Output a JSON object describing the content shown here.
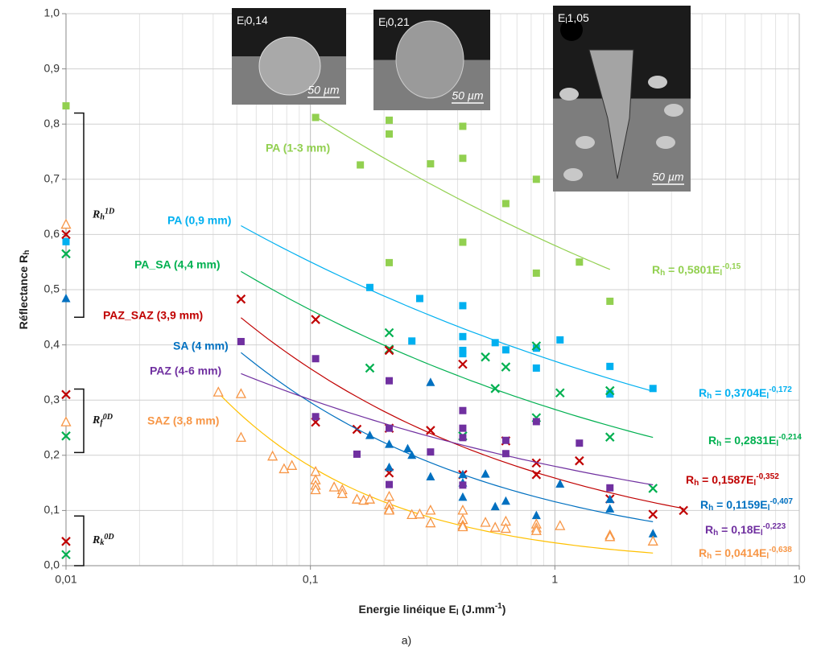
{
  "chart_data": {
    "type": "scatter",
    "log_x": true,
    "grid": true,
    "y_label": {
      "text": "Réflectance R",
      "sub": "h"
    },
    "x_label": {
      "text": "Energie linéique E",
      "sub": "l",
      "unit": " (J.mm",
      "sup": "-1",
      "close": ")"
    },
    "caption": "a)",
    "xlim": [
      0.01,
      10
    ],
    "xticks": [
      {
        "value": 0.01,
        "label": "0,01"
      },
      {
        "value": 0.1,
        "label": "0,1"
      },
      1,
      10
    ],
    "ylim": [
      0,
      1
    ],
    "yticks": [
      {
        "value": 0,
        "label": "0,0"
      },
      {
        "value": 0.1,
        "label": "0,1"
      },
      {
        "value": 0.2,
        "label": "0,2"
      },
      {
        "value": 0.3,
        "label": "0,3"
      },
      {
        "value": 0.4,
        "label": "0,4"
      },
      {
        "value": 0.5,
        "label": "0,5"
      },
      {
        "value": 0.6,
        "label": "0,6"
      },
      {
        "value": 0.7,
        "label": "0,7"
      },
      {
        "value": 0.8,
        "label": "0,8"
      },
      {
        "value": 0.9,
        "label": "0,9"
      },
      {
        "value": 1,
        "label": "1,0"
      }
    ],
    "series": [
      {
        "name": "PA (1-3 mm)",
        "color": "#92d050",
        "marker": "square",
        "x": [
          0.01,
          0.105,
          0.16,
          0.21,
          0.21,
          0.21,
          0.31,
          0.42,
          0.42,
          0.42,
          0.63,
          0.84,
          0.84,
          1.26,
          1.68
        ],
        "values": [
          0.833,
          0.812,
          0.726,
          0.807,
          0.782,
          0.549,
          0.728,
          0.796,
          0.738,
          0.586,
          0.656,
          0.7,
          0.53,
          0.55,
          0.479
        ],
        "fit": {
          "a": 0.5801,
          "b": -0.15,
          "x_range": [
            0.105,
            1.68
          ]
        },
        "equation": {
          "lhs": "R",
          "lhs_sub": "h",
          "rhs": " = 0,5801E",
          "rhs_sub": "l",
          "exp": "-0,15"
        }
      },
      {
        "name": "PA (0,9 mm)",
        "color": "#00b0f0",
        "marker": "square",
        "x": [
          0.01,
          0.175,
          0.26,
          0.28,
          0.42,
          0.42,
          0.42,
          0.42,
          0.57,
          0.63,
          0.84,
          0.84,
          1.05,
          1.68,
          1.68,
          2.52
        ],
        "values": [
          0.587,
          0.504,
          0.407,
          0.484,
          0.471,
          0.415,
          0.384,
          0.39,
          0.404,
          0.391,
          0.394,
          0.358,
          0.409,
          0.361,
          0.311,
          0.321
        ],
        "fit": {
          "a": 0.3704,
          "b": -0.172,
          "x_range": [
            0.052,
            2.52
          ]
        },
        "equation": {
          "lhs": "R",
          "lhs_sub": "h",
          "rhs": " = 0,3704E",
          "rhs_sub": "l",
          "exp": "-0,172"
        }
      },
      {
        "name": "PA_SA (4,4 mm)",
        "color": "#00b050",
        "marker": "cross",
        "x": [
          0.01,
          0.01,
          0.01,
          0.175,
          0.21,
          0.21,
          0.42,
          0.52,
          0.57,
          0.63,
          0.84,
          0.84,
          1.05,
          1.68,
          1.68,
          2.52
        ],
        "values": [
          0.565,
          0.235,
          0.02,
          0.358,
          0.422,
          0.392,
          0.235,
          0.378,
          0.321,
          0.36,
          0.398,
          0.268,
          0.313,
          0.233,
          0.317,
          0.14
        ],
        "fit": {
          "a": 0.2831,
          "b": -0.214,
          "x_range": [
            0.052,
            2.52
          ]
        },
        "equation": {
          "lhs": "R",
          "lhs_sub": "h",
          "rhs": " = 0,2831E",
          "rhs_sub": "l",
          "exp": "-0,214"
        }
      },
      {
        "name": "PAZ_SAZ (3,9 mm)",
        "color": "#c00000",
        "marker": "cross",
        "x": [
          0.01,
          0.01,
          0.01,
          0.052,
          0.105,
          0.105,
          0.155,
          0.21,
          0.21,
          0.21,
          0.31,
          0.42,
          0.42,
          0.63,
          0.84,
          0.84,
          1.26,
          1.68,
          2.52,
          3.36
        ],
        "values": [
          0.6,
          0.31,
          0.044,
          0.483,
          0.446,
          0.26,
          0.247,
          0.39,
          0.249,
          0.168,
          0.245,
          0.365,
          0.165,
          0.226,
          0.186,
          0.165,
          0.19,
          0.121,
          0.093,
          0.1
        ],
        "fit": {
          "a": 0.1587,
          "b": -0.352,
          "x_range": [
            0.052,
            3.36
          ]
        },
        "equation": {
          "lhs": "R",
          "lhs_sub": "h",
          "rhs": " = 0,1587E",
          "rhs_sub": "l",
          "exp": "-0,352"
        }
      },
      {
        "name": "SA (4 mm)",
        "color": "#0070c0",
        "marker": "triangle",
        "x": [
          0.01,
          0.175,
          0.21,
          0.21,
          0.25,
          0.26,
          0.31,
          0.31,
          0.42,
          0.42,
          0.42,
          0.52,
          0.57,
          0.63,
          0.84,
          1.05,
          1.68,
          1.68,
          2.52
        ],
        "values": [
          0.484,
          0.236,
          0.22,
          0.178,
          0.212,
          0.2,
          0.332,
          0.161,
          0.165,
          0.124,
          0.15,
          0.166,
          0.107,
          0.117,
          0.091,
          0.148,
          0.103,
          0.12,
          0.058
        ],
        "fit": {
          "a": 0.1159,
          "b": -0.407,
          "x_range": [
            0.052,
            2.52
          ]
        },
        "equation": {
          "lhs": "R",
          "lhs_sub": "h",
          "rhs": " = 0,1159E",
          "rhs_sub": "l",
          "exp": "-0,407"
        }
      },
      {
        "name": "PAZ (4-6 mm)",
        "color": "#7030a0",
        "marker": "square",
        "x": [
          0.052,
          0.105,
          0.105,
          0.155,
          0.21,
          0.21,
          0.21,
          0.31,
          0.42,
          0.42,
          0.42,
          0.42,
          0.63,
          0.63,
          0.84,
          1.26,
          1.68
        ],
        "values": [
          0.406,
          0.375,
          0.27,
          0.202,
          0.335,
          0.249,
          0.147,
          0.206,
          0.281,
          0.249,
          0.232,
          0.146,
          0.227,
          0.203,
          0.261,
          0.222,
          0.141
        ],
        "fit": {
          "a": 0.18,
          "b": -0.223,
          "x_range": [
            0.052,
            2.52
          ]
        },
        "equation": {
          "lhs": "R",
          "lhs_sub": "h",
          "rhs": " = 0,18E",
          "rhs_sub": "l",
          "exp": "-0,223"
        }
      },
      {
        "name": "SAZ (3,8 mm)",
        "color": "#f79646",
        "marker": "triangle-open",
        "fit_color": "#ffc000",
        "x": [
          0.01,
          0.01,
          0.042,
          0.052,
          0.052,
          0.07,
          0.078,
          0.084,
          0.105,
          0.105,
          0.105,
          0.105,
          0.125,
          0.135,
          0.135,
          0.155,
          0.165,
          0.175,
          0.21,
          0.21,
          0.21,
          0.21,
          0.26,
          0.28,
          0.31,
          0.31,
          0.42,
          0.42,
          0.42,
          0.42,
          0.52,
          0.57,
          0.63,
          0.63,
          0.84,
          0.84,
          0.84,
          1.05,
          1.68,
          1.68,
          2.52
        ],
        "values": [
          0.618,
          0.26,
          0.314,
          0.311,
          0.232,
          0.198,
          0.175,
          0.181,
          0.17,
          0.155,
          0.145,
          0.137,
          0.142,
          0.137,
          0.13,
          0.12,
          0.118,
          0.12,
          0.125,
          0.11,
          0.102,
          0.1,
          0.092,
          0.093,
          0.1,
          0.077,
          0.1,
          0.083,
          0.073,
          0.07,
          0.078,
          0.069,
          0.08,
          0.067,
          0.075,
          0.068,
          0.063,
          0.072,
          0.055,
          0.052,
          0.044
        ],
        "fit": {
          "a": 0.0414,
          "b": -0.638,
          "x_range": [
            0.042,
            2.52
          ]
        },
        "equation": {
          "lhs": "R",
          "lhs_sub": "h",
          "rhs": " = 0,0414E",
          "rhs_sub": "l",
          "exp": "-0,638"
        }
      }
    ],
    "annotations": [
      {
        "main": "R",
        "sub": "h",
        "sup": "1D",
        "span": [
          0.45,
          0.82
        ]
      },
      {
        "main": "R",
        "sub": "f",
        "sup": "0D",
        "span": [
          0.205,
          0.32
        ]
      },
      {
        "main": "R",
        "sub": "k",
        "sup": "0D",
        "span": [
          0,
          0.09
        ]
      }
    ],
    "insets": [
      {
        "prefix": "E",
        "sub": "l",
        "value": "0,14",
        "scale": "50 µm"
      },
      {
        "prefix": "E",
        "sub": "l",
        "value": "0,21",
        "scale": "50 µm"
      },
      {
        "prefix": "E",
        "sub": "l",
        "value": "1,05",
        "scale": "50 µm"
      }
    ]
  }
}
